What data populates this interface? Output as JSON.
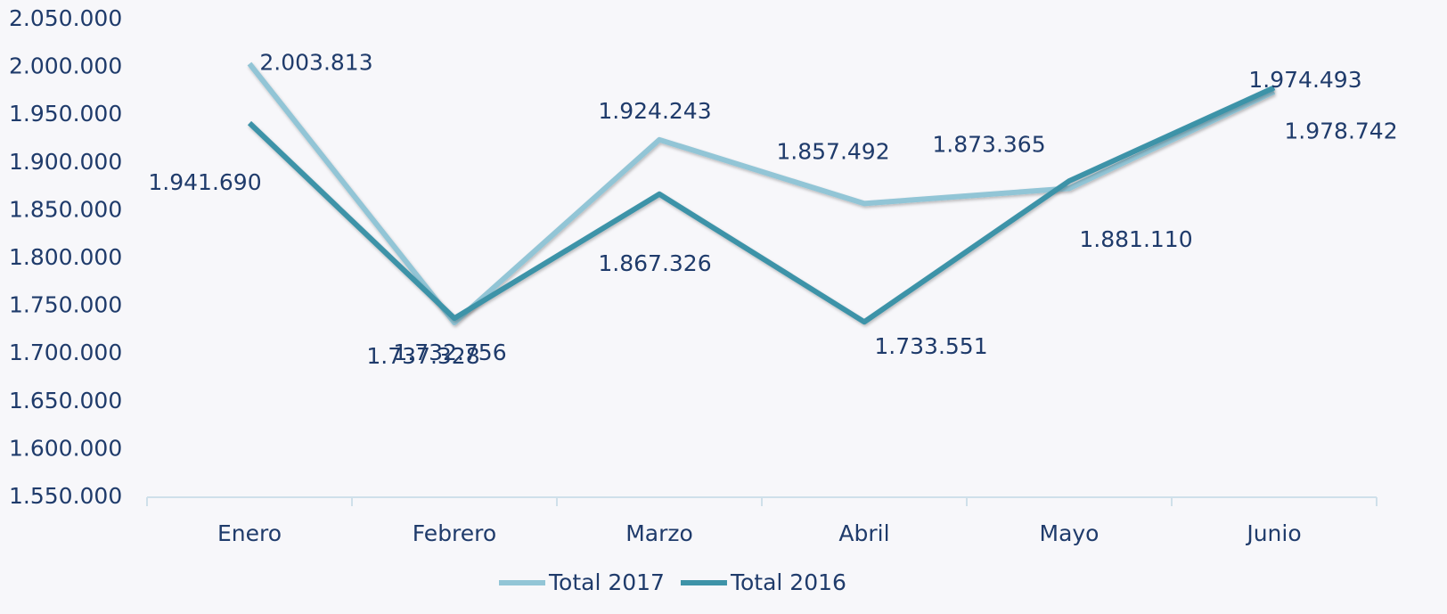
{
  "chart_data": {
    "type": "line",
    "categories": [
      "Enero",
      "Febrero",
      "Marzo",
      "Abril",
      "Mayo",
      "Junio"
    ],
    "series": [
      {
        "name": "Total 2017",
        "color": "#92c5d6",
        "values": [
          2003813,
          1732756,
          1924243,
          1857492,
          1873365,
          1974493
        ],
        "value_labels": [
          "2.003.813",
          "1.732.756",
          "1.924.243",
          "1.857.492",
          "1.873.365",
          "1.974.493"
        ]
      },
      {
        "name": "Total 2016",
        "color": "#3e93a8",
        "values": [
          1941690,
          1737328,
          1867326,
          1733551,
          1881110,
          1978742
        ],
        "value_labels": [
          "1.941.690",
          "1.737.328",
          "1.867.326",
          "1.733.551",
          "1.881.110",
          "1.978.742"
        ]
      }
    ],
    "ylim": [
      1550000,
      2050000
    ],
    "yticks": [
      {
        "value": 1550000,
        "label": "1.550.000"
      },
      {
        "value": 1600000,
        "label": "1.600.000"
      },
      {
        "value": 1650000,
        "label": "1.650.000"
      },
      {
        "value": 1700000,
        "label": "1.700.000"
      },
      {
        "value": 1750000,
        "label": "1.750.000"
      },
      {
        "value": 1800000,
        "label": "1.800.000"
      },
      {
        "value": 1850000,
        "label": "1.850.000"
      },
      {
        "value": 1900000,
        "label": "1.900.000"
      },
      {
        "value": 1950000,
        "label": "1.950.000"
      },
      {
        "value": 2000000,
        "label": "2.000.000"
      },
      {
        "value": 2050000,
        "label": "2.050.000"
      }
    ],
    "grid": false,
    "legend": "bottom"
  }
}
